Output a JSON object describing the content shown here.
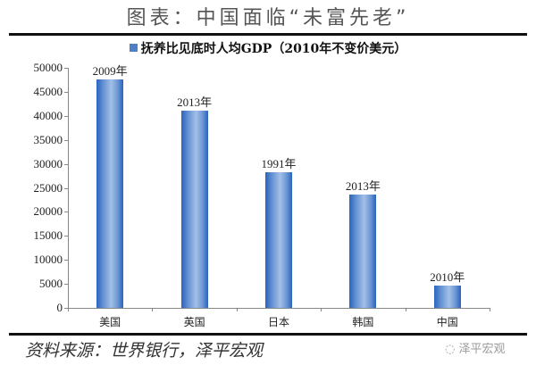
{
  "header": {
    "title": "图表：中国面临“未富先老”"
  },
  "footer": {
    "source": "资料来源：世界银行，泽平宏观",
    "watermark": "泽平宏观"
  },
  "chart_data": {
    "type": "bar",
    "title": "图表：中国面临“未富先老”",
    "legend": [
      "抚养比见底时人均GDP（2010年不变价美元）"
    ],
    "legend_position": "top",
    "categories": [
      "美国",
      "英国",
      "日本",
      "韩国",
      "中国"
    ],
    "series": [
      {
        "name": "抚养比见底时人均GDP（2010年不变价美元）",
        "values": [
          47600,
          41100,
          28300,
          23600,
          4600
        ]
      }
    ],
    "annotations": [
      "2009年",
      "2013年",
      "1991年",
      "2013年",
      "2010年"
    ],
    "yticks": [
      "0",
      "5000",
      "10000",
      "15000",
      "20000",
      "25000",
      "30000",
      "35000",
      "40000",
      "45000",
      "50000"
    ],
    "xlabel": "",
    "ylabel": "",
    "ylim": [
      0,
      50000
    ],
    "grid": false,
    "color": "#2a64be"
  }
}
